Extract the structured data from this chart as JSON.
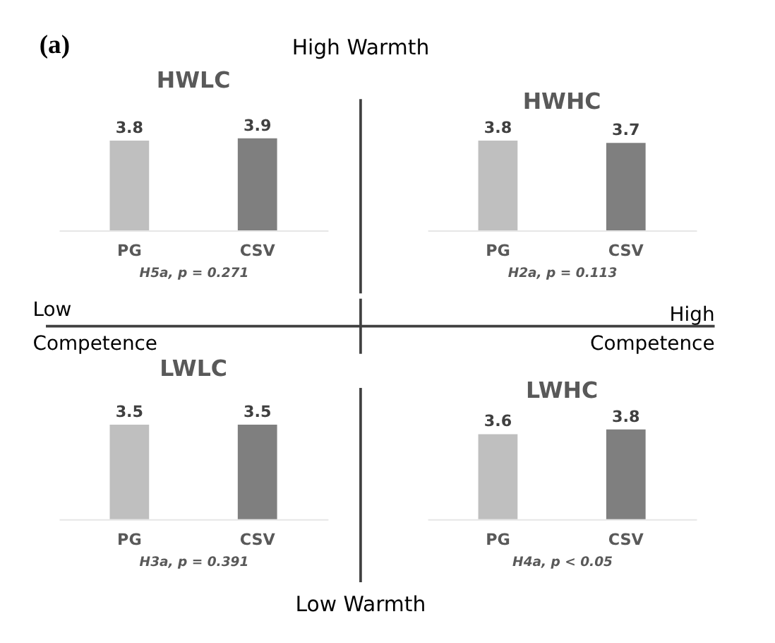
{
  "chart_data": [
    {
      "type": "bar",
      "title": "HWLC",
      "categories": [
        "PG",
        "CSV"
      ],
      "values": [
        3.8,
        3.9
      ],
      "colors": [
        "#bfbfbf",
        "#7f7f7f"
      ],
      "data_labels": true,
      "annotations": [
        "H5a, p = 0.271"
      ]
    },
    {
      "type": "bar",
      "title": "HWHC",
      "categories": [
        "PG",
        "CSV"
      ],
      "values": [
        3.8,
        3.7
      ],
      "colors": [
        "#bfbfbf",
        "#7f7f7f"
      ],
      "data_labels": true,
      "annotations": [
        "H2a, p = 0.113"
      ]
    },
    {
      "type": "bar",
      "title": "LWLC",
      "categories": [
        "PG",
        "CSV"
      ],
      "values": [
        3.5,
        3.5
      ],
      "colors": [
        "#bfbfbf",
        "#7f7f7f"
      ],
      "data_labels": true,
      "annotations": [
        "H3a, p = 0.391"
      ]
    },
    {
      "type": "bar",
      "title": "LWHC",
      "categories": [
        "PG",
        "CSV"
      ],
      "values": [
        3.6,
        3.8
      ],
      "colors": [
        "#bfbfbf",
        "#7f7f7f"
      ],
      "data_labels": true,
      "annotations": [
        "H4a, p < 0.05"
      ]
    },
    {
      "type": "other",
      "annotations": [
        "(a)",
        "High Warmth",
        "Low",
        "Competence",
        "High",
        "Competence",
        "Low Warmth"
      ]
    }
  ]
}
